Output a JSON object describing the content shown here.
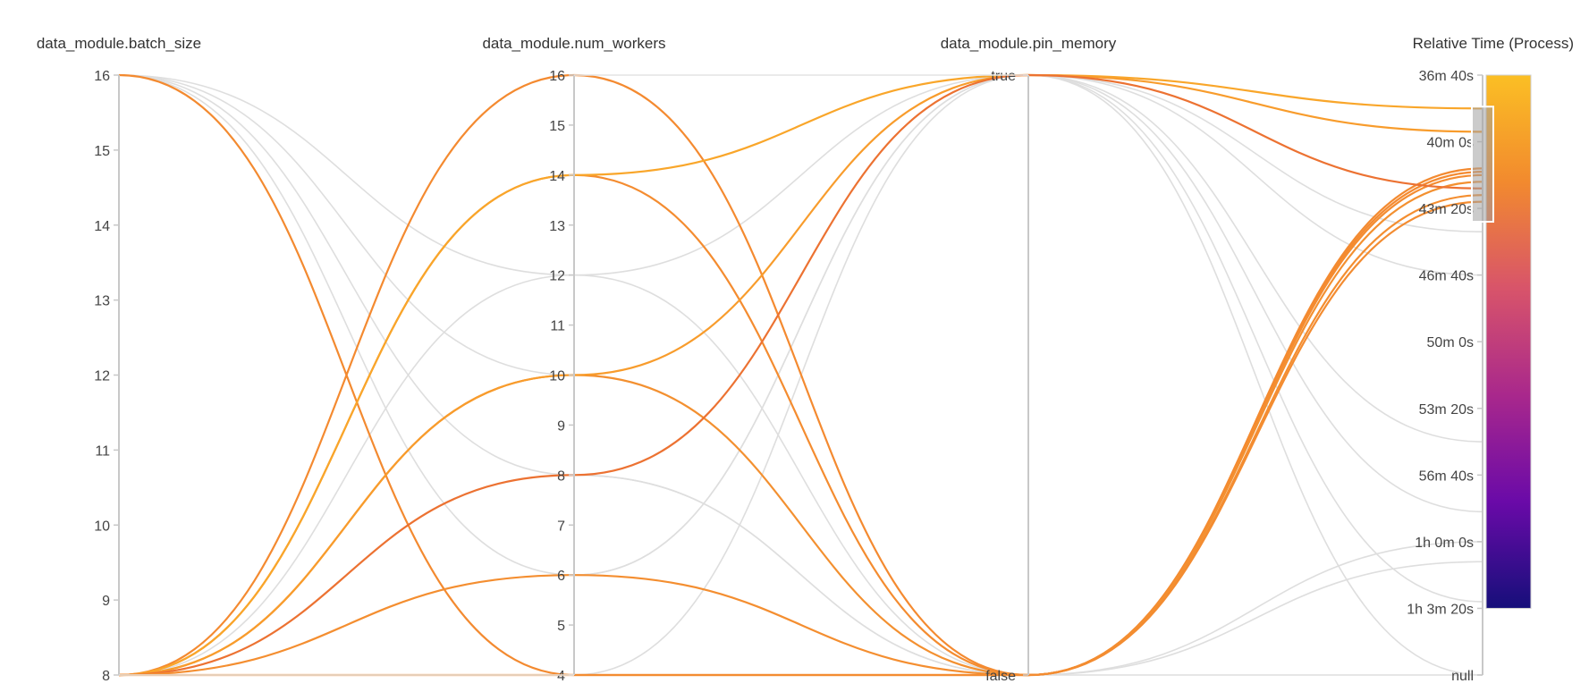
{
  "chart_data": {
    "type": "parallel_coordinates",
    "axes": [
      {
        "name": "data_module.batch_size",
        "kind": "numeric",
        "min": 8,
        "max": 16,
        "ticks": [
          "16",
          "15",
          "14",
          "13",
          "12",
          "11",
          "10",
          "9",
          "8"
        ]
      },
      {
        "name": "data_module.num_workers",
        "kind": "numeric",
        "min": 4,
        "max": 16,
        "ticks": [
          "16",
          "15",
          "14",
          "13",
          "12",
          "11",
          "10",
          "9",
          "8",
          "7",
          "6",
          "5",
          "4"
        ]
      },
      {
        "name": "data_module.pin_memory",
        "kind": "categorical",
        "ticks": [
          "true",
          "false"
        ]
      },
      {
        "name": "Relative Time (Process)",
        "kind": "time",
        "ticks": [
          "36m 40s",
          "40m 0s",
          "43m 20s",
          "46m 40s",
          "50m 0s",
          "53m 20s",
          "56m 40s",
          "1h 0m 0s",
          "1h 3m 20s",
          "null"
        ]
      }
    ],
    "colorscale": [
      "#fbbf24",
      "#f28a2e",
      "#d8546a",
      "#a9288c",
      "#6a0aa8",
      "#160f7a"
    ],
    "colorscale_range": [
      "36m 40s",
      "1h 3m 20s"
    ],
    "highlighted_runs": [
      {
        "batch_size": 16,
        "num_workers": 4,
        "pin_memory": "false",
        "time": "41m 20s",
        "color": "#f38a30"
      },
      {
        "batch_size": 8,
        "num_workers": 16,
        "pin_memory": "false",
        "time": "41m 30s",
        "color": "#f48a30"
      },
      {
        "batch_size": 8,
        "num_workers": 14,
        "pin_memory": "false",
        "time": "41m 40s",
        "color": "#f48c30"
      },
      {
        "batch_size": 8,
        "num_workers": 14,
        "pin_memory": "true",
        "time": "38m 20s",
        "color": "#f9a62a"
      },
      {
        "batch_size": 8,
        "num_workers": 10,
        "pin_memory": "false",
        "time": "42m 0s",
        "color": "#f39030"
      },
      {
        "batch_size": 8,
        "num_workers": 10,
        "pin_memory": "true",
        "time": "39m 30s",
        "color": "#f89c2c"
      },
      {
        "batch_size": 8,
        "num_workers": 8,
        "pin_memory": "true",
        "time": "42m 20s",
        "color": "#ec7232"
      },
      {
        "batch_size": 8,
        "num_workers": 6,
        "pin_memory": "false",
        "time": "42m 40s",
        "color": "#f48e30"
      },
      {
        "batch_size": 8,
        "num_workers": 4,
        "pin_memory": "false",
        "time": "43m 0s",
        "color": "#f38c31"
      }
    ],
    "background_runs": [
      {
        "batch_size": 16,
        "num_workers": 6,
        "pin_memory": "true",
        "time": "46m 40s"
      },
      {
        "batch_size": 16,
        "num_workers": 8,
        "pin_memory": "false",
        "time": "null"
      },
      {
        "batch_size": 16,
        "num_workers": 10,
        "pin_memory": "true",
        "time": "55m 0s"
      },
      {
        "batch_size": 16,
        "num_workers": 12,
        "pin_memory": "false",
        "time": "1h 1m 0s"
      },
      {
        "batch_size": 8,
        "num_workers": 12,
        "pin_memory": "true",
        "time": "1h 3m 0s"
      },
      {
        "batch_size": 8,
        "num_workers": 8,
        "pin_memory": "false",
        "time": "1h 0m 0s"
      },
      {
        "batch_size": 8,
        "num_workers": 6,
        "pin_memory": "true",
        "time": "58m 30s"
      },
      {
        "batch_size": 8,
        "num_workers": 4,
        "pin_memory": "true",
        "time": "null"
      },
      {
        "batch_size": 8,
        "num_workers": 8,
        "pin_memory": "true",
        "time": "44m 30s"
      }
    ]
  }
}
